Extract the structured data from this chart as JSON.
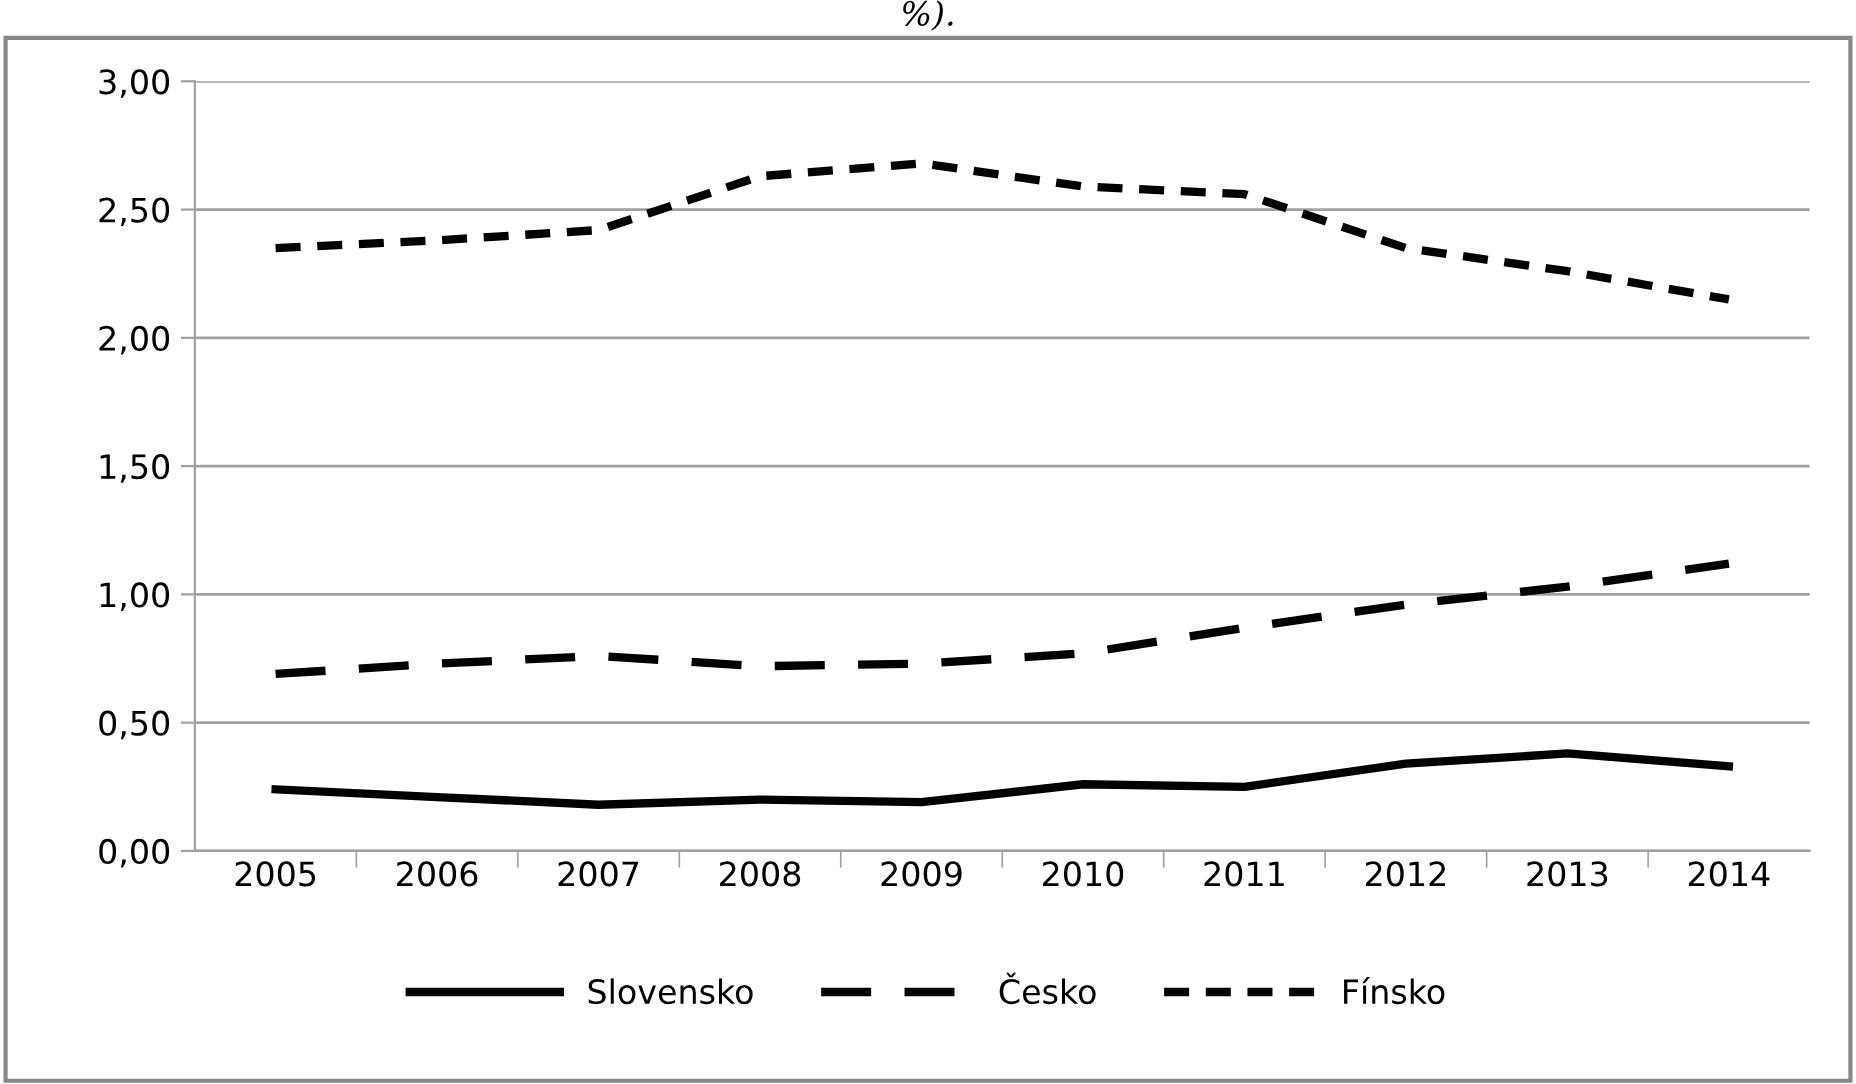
{
  "chart_data": {
    "type": "line",
    "annotations": [
      "%)."
    ],
    "categories": [
      "2005",
      "2006",
      "2007",
      "2008",
      "2009",
      "2010",
      "2011",
      "2012",
      "2013",
      "2014"
    ],
    "series": [
      {
        "name": "Slovensko",
        "color": "#000000",
        "line_style": "solid",
        "values": [
          0.24,
          0.21,
          0.18,
          0.2,
          0.19,
          0.26,
          0.25,
          0.34,
          0.38,
          0.33
        ]
      },
      {
        "name": "Česko",
        "color": "#000000",
        "line_style": "dashed",
        "values": [
          0.69,
          0.73,
          0.76,
          0.72,
          0.73,
          0.77,
          0.87,
          0.96,
          1.03,
          1.12
        ]
      },
      {
        "name": "Fínsko",
        "color": "#000000",
        "line_style": "dotted",
        "values": [
          2.35,
          2.38,
          2.42,
          2.63,
          2.68,
          2.59,
          2.56,
          2.35,
          2.26,
          2.15
        ]
      }
    ],
    "ylim": [
      0,
      3
    ],
    "yticks": [
      {
        "value": 0,
        "label": "0,00"
      },
      {
        "value": 0.5,
        "label": "0,50"
      },
      {
        "value": 1,
        "label": "1,00"
      },
      {
        "value": 1.5,
        "label": "1,50"
      },
      {
        "value": 2,
        "label": "2,00"
      },
      {
        "value": 2.5,
        "label": "2,50"
      },
      {
        "value": 3,
        "label": "3,00"
      }
    ],
    "grid": "y",
    "legend": "bottom",
    "marker": "none"
  }
}
